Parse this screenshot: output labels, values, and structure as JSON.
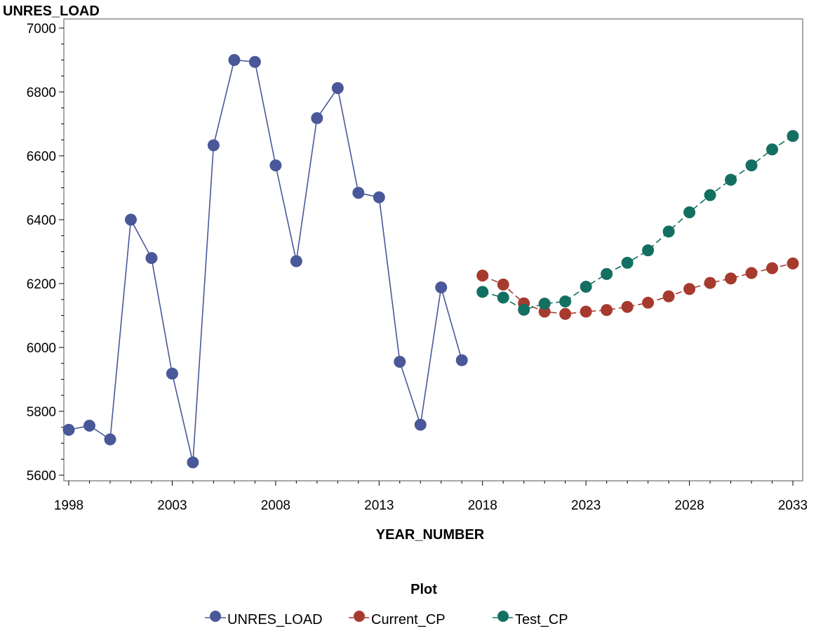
{
  "chart_data": {
    "type": "line",
    "xlabel": "YEAR_NUMBER",
    "ylabel": "UNRES_LOAD",
    "xlim": [
      1998,
      2033
    ],
    "ylim": [
      5600,
      7000
    ],
    "x_ticks": [
      1998,
      2003,
      2008,
      2013,
      2018,
      2023,
      2028,
      2033
    ],
    "y_ticks": [
      5600,
      5800,
      6000,
      6200,
      6400,
      6600,
      6800,
      7000
    ],
    "grid": false,
    "legend": {
      "title": "Plot",
      "position": "bottom-center"
    },
    "series": [
      {
        "name": "UNRES_LOAD",
        "color": "#4a5899",
        "dashed": false,
        "x": [
          1998,
          1999,
          2000,
          2001,
          2002,
          2003,
          2004,
          2005,
          2006,
          2007,
          2008,
          2009,
          2010,
          2011,
          2012,
          2013,
          2014,
          2015,
          2016,
          2017
        ],
        "y": [
          5742,
          5755,
          5712,
          6400,
          6280,
          5918,
          5640,
          6633,
          6900,
          6894,
          6570,
          6270,
          6718,
          6812,
          6484,
          6470,
          5955,
          5758,
          6188,
          5960
        ]
      },
      {
        "name": "Current_CP",
        "color": "#a63a2e",
        "dashed": true,
        "x": [
          2018,
          2019,
          2020,
          2021,
          2022,
          2023,
          2024,
          2025,
          2026,
          2027,
          2028,
          2029,
          2030,
          2031,
          2032,
          2033
        ],
        "y": [
          6225,
          6197,
          6138,
          6112,
          6105,
          6112,
          6117,
          6127,
          6140,
          6160,
          6183,
          6202,
          6216,
          6233,
          6248,
          6263
        ]
      },
      {
        "name": "Test_CP",
        "color": "#136f61",
        "dashed": true,
        "x": [
          2018,
          2019,
          2020,
          2021,
          2022,
          2023,
          2024,
          2025,
          2026,
          2027,
          2028,
          2029,
          2030,
          2031,
          2032,
          2033
        ],
        "y": [
          6174,
          6156,
          6118,
          6137,
          6144,
          6190,
          6230,
          6265,
          6304,
          6363,
          6423,
          6477,
          6525,
          6570,
          6620,
          6662
        ]
      }
    ]
  }
}
